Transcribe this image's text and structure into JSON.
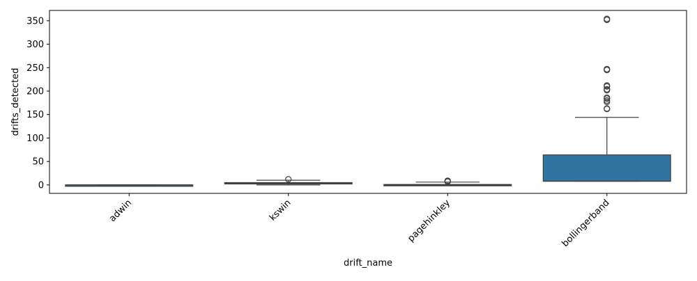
{
  "chart_data": {
    "type": "box",
    "xlabel": "drift_name",
    "ylabel": "drifts_detected",
    "categories": [
      "adwin",
      "kswin",
      "pagehinkley",
      "bollingerband"
    ],
    "ylim": [
      -18,
      372
    ],
    "yticks": [
      0,
      50,
      100,
      150,
      200,
      250,
      300,
      350
    ],
    "ytick_labels": [
      "0",
      "50",
      "100",
      "150",
      "200",
      "250",
      "300",
      "350"
    ],
    "grid": false,
    "legend": "none",
    "box_color": "#3274a1",
    "line_color": "#3f3f3f",
    "boxes": [
      {
        "category": "adwin",
        "whisker_low": 0,
        "q1": 0,
        "median": 0,
        "q3": 0,
        "whisker_high": 0,
        "outliers": []
      },
      {
        "category": "kswin",
        "whisker_low": 0,
        "q1": 3,
        "median": 4,
        "q3": 5,
        "whisker_high": 10,
        "outliers": [
          12
        ]
      },
      {
        "category": "pagehinkley",
        "whisker_low": 0,
        "q1": 0,
        "median": 0,
        "q3": 1,
        "whisker_high": 6,
        "outliers": [
          7,
          8,
          9
        ]
      },
      {
        "category": "bollingerband",
        "whisker_low": 8,
        "q1": 8,
        "median": 8,
        "q3": 64,
        "whisker_high": 144,
        "outliers": [
          162,
          163,
          177,
          180,
          184,
          186,
          202,
          204,
          210,
          212,
          245,
          247,
          352,
          354
        ]
      }
    ]
  }
}
